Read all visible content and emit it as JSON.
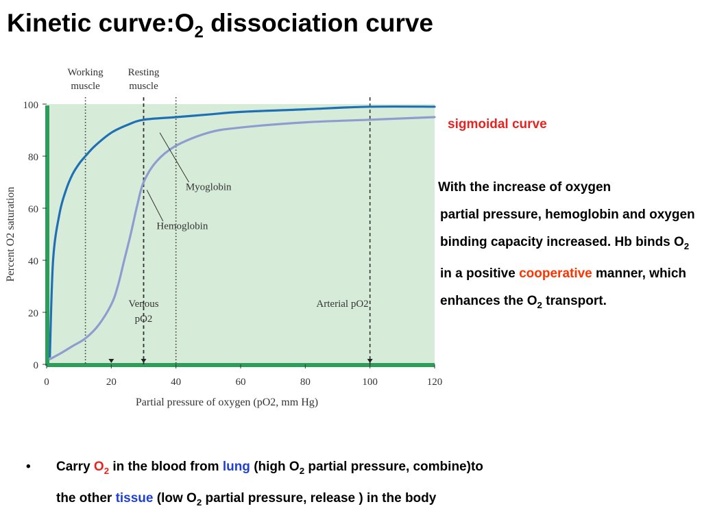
{
  "title": {
    "text": "Kinetic curve:O",
    "sub": "2",
    "text_after": " dissociation curve"
  },
  "side_label": {
    "text": "sigmoidal curve",
    "color": "#e8231f"
  },
  "paragraph": {
    "line1": "With the increase of oxygen",
    "part1": "partial pressure, hemoglobin and oxygen binding capacity increased. Hb binds O",
    "sub1": "2",
    "part2": " in a positive ",
    "highlight": "cooperative",
    "highlight_color": "#ff3300",
    "part3": " manner, which enhances the O",
    "sub2": "2",
    "part4": " transport."
  },
  "bullet": {
    "symbol": "•",
    "t1": "Carry ",
    "o2": "O",
    "o2_sub": "2",
    "o2_color": "#e8231f",
    "t2": " in the blood from ",
    "lung": "lung",
    "lung_color": "#1f3fd6",
    "t3": " (high O",
    "t3_sub": "2",
    "t4": " partial pressure, combine)to",
    "t5": "the other ",
    "tissue": "tissue",
    "tissue_color": "#1f3fd6",
    "t6": " (low O",
    "t6_sub": "2",
    "t7": " partial pressure, release ) in the body"
  },
  "chart_data": {
    "type": "line",
    "xlabel": "Partial pressure of oxygen (pO2, mm Hg)",
    "ylabel": "Percent O2 saturation",
    "xlim": [
      0,
      120
    ],
    "ylim": [
      0,
      100
    ],
    "x_ticks": [
      "0",
      "20",
      "40",
      "60",
      "80",
      "100",
      "120"
    ],
    "y_ticks": [
      "0",
      "20",
      "40",
      "60",
      "80",
      "100"
    ],
    "background_color": "#d6ecd9",
    "series": [
      {
        "name": "Myoglobin",
        "color": "#1f6fb5",
        "x": [
          1,
          2,
          4,
          6,
          8,
          10,
          12,
          15,
          20,
          25,
          30,
          40,
          50,
          60,
          80,
          100,
          120
        ],
        "y": [
          3,
          40,
          58,
          67,
          73,
          77,
          80,
          84,
          89,
          92,
          94,
          95,
          96,
          97,
          98,
          99,
          99
        ]
      },
      {
        "name": "Hemoglobin",
        "color": "#8e9ccf",
        "x": [
          1,
          4,
          8,
          12,
          16,
          20,
          22,
          24,
          26,
          28,
          30,
          34,
          40,
          50,
          60,
          80,
          100,
          120
        ],
        "y": [
          2,
          4,
          7,
          10,
          15,
          23,
          30,
          40,
          50,
          61,
          70,
          78,
          84,
          89,
          91,
          93,
          94,
          95
        ]
      }
    ],
    "vertical_markers": [
      {
        "x": 12,
        "label_lines": [
          "Working",
          "muscle"
        ],
        "style": "dotted",
        "position": "top"
      },
      {
        "x": 30,
        "label_lines": [
          "Resting",
          "muscle"
        ],
        "style": "dashed",
        "position": "top"
      },
      {
        "x": 40,
        "label_lines": [],
        "style": "dotted",
        "position": "top"
      },
      {
        "x": 30,
        "label_lines": [
          "Venous",
          "pO2"
        ],
        "style": "dashed",
        "position": "bottom"
      },
      {
        "x": 100,
        "label_lines": [
          "Arterial pO2"
        ],
        "style": "dashed",
        "position": "bottom"
      }
    ],
    "annotations": [
      {
        "text": "Myoglobin",
        "points_to": "Myoglobin"
      },
      {
        "text": "Hemoglobin",
        "points_to": "Hemoglobin"
      }
    ]
  }
}
